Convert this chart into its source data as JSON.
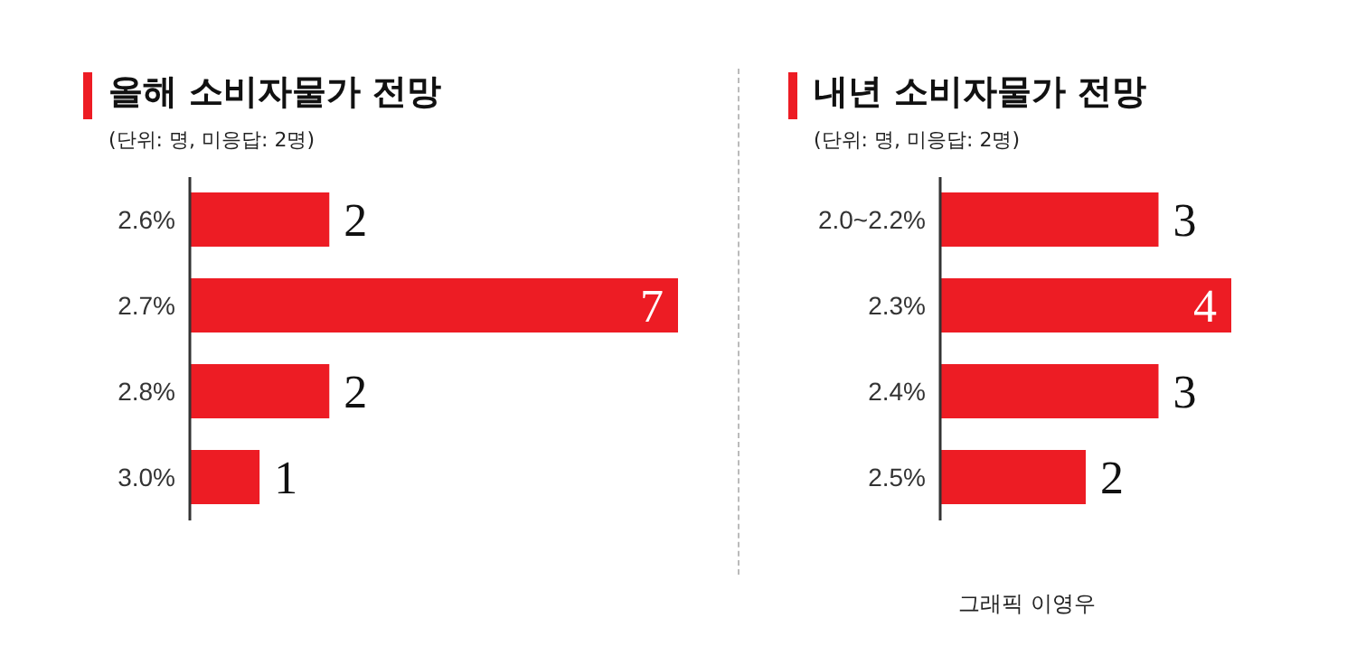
{
  "chart_data": [
    {
      "type": "bar",
      "orientation": "horizontal",
      "title": "올해 소비자물가 전망",
      "subtitle": "(단위: 명, 미응답: 2명)",
      "categories": [
        "2.6%",
        "2.7%",
        "2.8%",
        "3.0%"
      ],
      "values": [
        2,
        7,
        2,
        1
      ],
      "color": "#ed1c24",
      "data_labels": true,
      "tick_labels": "y"
    },
    {
      "type": "bar",
      "orientation": "horizontal",
      "title": "내년 소비자물가 전망",
      "subtitle": "(단위: 명, 미응답: 2명)",
      "categories": [
        "2.0~2.2%",
        "2.3%",
        "2.4%",
        "2.5%"
      ],
      "values": [
        3,
        4,
        3,
        2
      ],
      "color": "#ed1c24",
      "data_labels": true,
      "tick_labels": "y",
      "annotations": [
        "그래픽 이영우"
      ]
    }
  ]
}
